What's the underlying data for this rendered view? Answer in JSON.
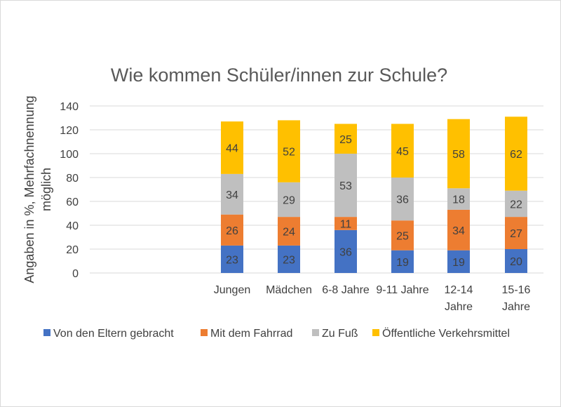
{
  "chart_data": {
    "type": "bar",
    "stacked": true,
    "title": "Wie kommen Schüler/innen zur Schule?",
    "ylabel_lines": [
      "Angaben in %, Mehrfachnennung",
      "möglich"
    ],
    "ylim": [
      0,
      140
    ],
    "yticks": [
      0,
      20,
      40,
      60,
      80,
      100,
      120,
      140
    ],
    "grid": true,
    "legend_position": "bottom",
    "categories": [
      [
        "Jungen"
      ],
      [
        "Mädchen"
      ],
      [
        "6-8 Jahre"
      ],
      [
        "9-11 Jahre"
      ],
      [
        "12-14",
        "Jahre"
      ],
      [
        "15-16",
        "Jahre"
      ]
    ],
    "series": [
      {
        "name": "Von den Eltern gebracht",
        "color": "#4472C4",
        "label_color": "#404040",
        "values": [
          23,
          23,
          36,
          19,
          19,
          20
        ]
      },
      {
        "name": "Mit dem Fahrrad",
        "color": "#ED7D31",
        "label_color": "#404040",
        "values": [
          26,
          24,
          11,
          25,
          34,
          27
        ]
      },
      {
        "name": "Zu Fuß",
        "color": "#BFBFBF",
        "label_color": "#404040",
        "values": [
          34,
          29,
          53,
          36,
          18,
          22
        ]
      },
      {
        "name": "Öffentliche Verkehrsmittel",
        "color": "#FFC000",
        "label_color": "#404040",
        "values": [
          44,
          52,
          25,
          45,
          58,
          62
        ]
      }
    ]
  }
}
